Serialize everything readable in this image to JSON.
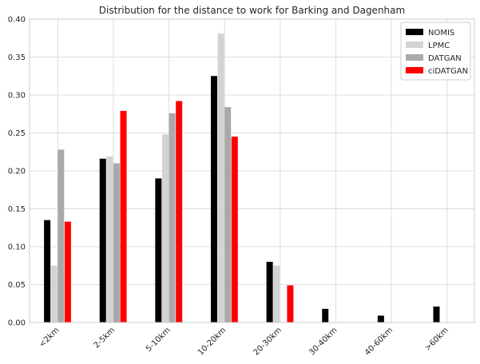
{
  "chart_data": {
    "type": "bar",
    "title": "Distribution for the distance to work for Barking and Dagenham",
    "xlabel": "",
    "ylabel": "",
    "categories": [
      "<2km",
      "2-5km",
      "5-10km",
      "10-20km",
      "20-30km",
      "30-40km",
      "40-60km",
      ">60km"
    ],
    "ylim": [
      0,
      0.4
    ],
    "yticks": [
      "0.00",
      "0.05",
      "0.10",
      "0.15",
      "0.20",
      "0.25",
      "0.30",
      "0.35",
      "0.40"
    ],
    "grid": true,
    "legend_position": "top-right",
    "series": [
      {
        "name": "NOMIS",
        "color": "#000000",
        "values": [
          0.135,
          0.216,
          0.19,
          0.325,
          0.08,
          0.018,
          0.009,
          0.021
        ]
      },
      {
        "name": "LPMC",
        "color": "#d3d3d3",
        "values": [
          0.075,
          0.219,
          0.248,
          0.381,
          0.075,
          0,
          0,
          0
        ]
      },
      {
        "name": "DATGAN",
        "color": "#a9a9a9",
        "values": [
          0.228,
          0.21,
          0.276,
          0.284,
          0,
          0,
          0,
          0
        ]
      },
      {
        "name": "ciDATGAN",
        "color": "#ff0000",
        "values": [
          0.133,
          0.279,
          0.292,
          0.245,
          0.049,
          0,
          0,
          0
        ]
      }
    ]
  }
}
